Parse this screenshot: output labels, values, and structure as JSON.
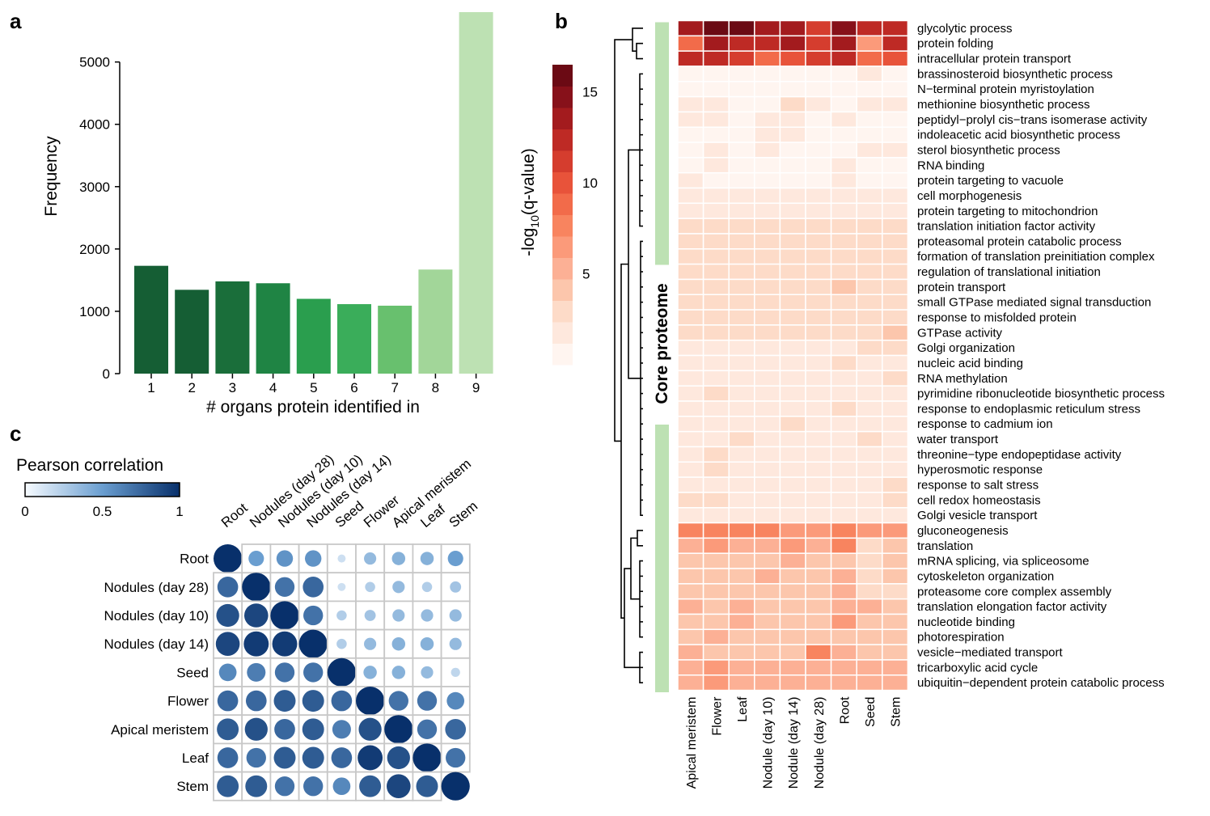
{
  "panels": [
    {
      "letter": "a"
    },
    {
      "letter": "b"
    },
    {
      "letter": "c"
    }
  ],
  "chart_data": [
    {
      "type": "bar",
      "panel": "a",
      "categories": [
        "1",
        "2",
        "3",
        "4",
        "5",
        "6",
        "7",
        "8",
        "9"
      ],
      "values": [
        1730,
        1345,
        1480,
        1450,
        1200,
        1115,
        1090,
        1670,
        5800
      ],
      "colors": [
        "#155e34",
        "#155e34",
        "#1a6e3a",
        "#1f8444",
        "#2a9e4e",
        "#3aad5a",
        "#68c06e",
        "#a2d699",
        "#bde1b3"
      ],
      "xlabel": "# organs protein identified in",
      "ylabel": "Frequency",
      "ylim": [
        0,
        5800
      ],
      "yticks": [
        0,
        1000,
        2000,
        3000,
        4000,
        5000
      ],
      "grid": false
    },
    {
      "type": "heatmap",
      "panel": "b",
      "colorbar": {
        "label_prefix": "-log",
        "label_sub": "10",
        "label_suffix": "(q-value)",
        "ticks": [
          5,
          10,
          15
        ],
        "min": 0,
        "max": 16.5,
        "colors": [
          "#fff5f0",
          "#fee8dd",
          "#fddbc8",
          "#fcc6ac",
          "#fcb095",
          "#fb9a7a",
          "#f8845f",
          "#f26b4a",
          "#e8533a",
          "#d53d2e",
          "#be2a25",
          "#a31b1e",
          "#87111a",
          "#6b0a14"
        ]
      },
      "columns": [
        "Apical meristem",
        "Flower",
        "Leaf",
        "Nodule (day 10)",
        "Nodule (day 14)",
        "Nodule (day 28)",
        "Root",
        "Seed",
        "Stem"
      ],
      "group_label": "Core proteome",
      "rows": [
        {
          "term": "glycolytic process",
          "values": [
            14,
            16,
            17,
            13,
            14,
            11,
            15,
            12,
            12
          ]
        },
        {
          "term": "protein folding",
          "values": [
            9,
            13,
            12,
            12,
            13,
            11,
            14,
            7,
            12
          ]
        },
        {
          "term": "intracellular protein transport",
          "values": [
            12,
            12,
            11,
            9,
            10,
            11,
            12,
            9,
            10
          ]
        },
        {
          "term": "brassinosteroid biosynthetic process",
          "values": [
            0.5,
            0.5,
            0.5,
            0.5,
            0.5,
            0.5,
            0.5,
            1.5,
            0.5
          ]
        },
        {
          "term": "N−terminal protein myristoylation",
          "values": [
            1,
            1,
            1,
            1,
            1,
            1,
            1,
            1,
            1
          ]
        },
        {
          "term": "methionine biosynthetic process",
          "values": [
            2,
            1.5,
            1,
            1,
            2.5,
            1.5,
            1,
            1.5,
            2
          ]
        },
        {
          "term": "peptidyl−prolyl cis−trans isomerase activity",
          "values": [
            1.5,
            1.5,
            1,
            2,
            2,
            1,
            2,
            1,
            1
          ]
        },
        {
          "term": "indoleacetic acid biosynthetic process",
          "values": [
            1,
            1,
            1,
            1.5,
            2,
            1,
            1,
            1,
            1
          ]
        },
        {
          "term": "sterol biosynthetic process",
          "values": [
            1,
            1.5,
            1,
            2,
            1,
            1,
            1,
            2,
            1.5
          ]
        },
        {
          "term": "RNA binding",
          "values": [
            1,
            2,
            1,
            1,
            1,
            1,
            2,
            1,
            1
          ]
        },
        {
          "term": "protein targeting to vacuole",
          "values": [
            1.5,
            1,
            1,
            1,
            1,
            1,
            1.5,
            1,
            1
          ]
        },
        {
          "term": "cell morphogenesis",
          "values": [
            1.5,
            2,
            2,
            1.5,
            1.5,
            1.5,
            2,
            1.5,
            1.5
          ]
        },
        {
          "term": "protein targeting to mitochondrion",
          "values": [
            1.5,
            1.5,
            1.5,
            1.5,
            1.5,
            1.5,
            1.5,
            1.5,
            1.5
          ]
        },
        {
          "term": "translation initiation factor activity",
          "values": [
            2.5,
            2.5,
            2.5,
            2.5,
            2.5,
            2.5,
            2.5,
            2.5,
            2.5
          ]
        },
        {
          "term": "proteasomal protein catabolic process",
          "values": [
            3,
            3,
            3,
            3,
            3,
            3,
            3,
            3,
            3
          ]
        },
        {
          "term": "formation of translation preinitiation complex",
          "values": [
            2.5,
            2.5,
            2.5,
            2.5,
            2.5,
            2.5,
            2.5,
            2.5,
            2.5
          ]
        },
        {
          "term": "regulation of translational initiation",
          "values": [
            2.5,
            2.5,
            2.5,
            2.5,
            2.5,
            2.5,
            2.5,
            2.5,
            2.5
          ]
        },
        {
          "term": "protein transport",
          "values": [
            2.5,
            2.5,
            2.5,
            2.5,
            3,
            3,
            4,
            2.5,
            3
          ]
        },
        {
          "term": "small GTPase mediated signal transduction",
          "values": [
            3,
            3,
            3,
            3,
            3,
            3,
            3,
            3,
            3
          ]
        },
        {
          "term": "response to misfolded protein",
          "values": [
            2.5,
            2.5,
            2.5,
            2.5,
            2.5,
            2.5,
            2.5,
            2.5,
            2.5
          ]
        },
        {
          "term": "GTPase activity",
          "values": [
            3,
            3,
            3,
            3,
            3,
            3,
            2.5,
            3,
            4
          ]
        },
        {
          "term": "Golgi organization",
          "values": [
            2,
            2,
            2,
            2,
            2,
            2,
            2,
            3,
            2.5
          ]
        },
        {
          "term": "nucleic acid binding",
          "values": [
            2,
            2,
            2,
            2,
            2,
            2,
            3,
            2,
            2
          ]
        },
        {
          "term": "RNA methylation",
          "values": [
            1.5,
            1.5,
            1.5,
            1.5,
            1.5,
            1.5,
            1.5,
            1.5,
            3
          ]
        },
        {
          "term": "pyrimidine ribonucleotide biosynthetic process",
          "values": [
            1.5,
            2.5,
            1.5,
            1.5,
            1.5,
            1.5,
            1.5,
            1.5,
            1.5
          ]
        },
        {
          "term": "response to endoplasmic reticulum stress",
          "values": [
            2,
            2,
            2,
            2,
            2,
            2,
            3,
            2,
            2
          ]
        },
        {
          "term": "response to cadmium ion",
          "values": [
            2,
            2,
            2,
            2,
            3,
            2,
            2,
            2,
            2
          ]
        },
        {
          "term": "water transport",
          "values": [
            1.5,
            2,
            2.5,
            1.5,
            1.5,
            1.5,
            1.5,
            2.5,
            1.5
          ]
        },
        {
          "term": "threonine−type endopeptidase activity",
          "values": [
            1.5,
            2.5,
            1.5,
            1.5,
            1.5,
            1.5,
            1.5,
            1.5,
            1.5
          ]
        },
        {
          "term": "hyperosmotic response",
          "values": [
            1.5,
            2.5,
            1.5,
            1.5,
            1.5,
            1.5,
            1.5,
            1.5,
            1.5
          ]
        },
        {
          "term": "response to salt stress",
          "values": [
            1.5,
            2,
            1.5,
            1.5,
            1.5,
            1.5,
            1.5,
            1.5,
            2.5
          ]
        },
        {
          "term": "cell redox homeostasis",
          "values": [
            2.5,
            2.5,
            2,
            2,
            2,
            2,
            2,
            2,
            2.5
          ]
        },
        {
          "term": "Golgi vesicle transport",
          "values": [
            2,
            2,
            1.5,
            1.5,
            1.5,
            1.5,
            1.5,
            1.5,
            2
          ]
        },
        {
          "term": "gluconeogenesis",
          "values": [
            8,
            7.5,
            7.5,
            7.5,
            7,
            7,
            7.5,
            6,
            6.5
          ]
        },
        {
          "term": "translation",
          "values": [
            5,
            6,
            5,
            5,
            6,
            5,
            8,
            3,
            4
          ]
        },
        {
          "term": "mRNA splicing, via spliceosome",
          "values": [
            4,
            4,
            4,
            4,
            5,
            4,
            4,
            3,
            4
          ]
        },
        {
          "term": "cytoskeleton organization",
          "values": [
            4,
            4,
            4,
            5,
            4,
            4,
            5,
            3,
            4
          ]
        },
        {
          "term": "proteasome core complex assembly",
          "values": [
            4,
            4,
            4,
            4,
            4,
            4,
            5,
            3,
            3.5
          ]
        },
        {
          "term": "translation elongation factor activity",
          "values": [
            5,
            4,
            5,
            4,
            4,
            4,
            5,
            5,
            4.5
          ]
        },
        {
          "term": "nucleotide binding",
          "values": [
            4,
            4,
            5,
            4,
            4,
            4,
            6,
            4,
            4
          ]
        },
        {
          "term": "photorespiration",
          "values": [
            4,
            5,
            4,
            4,
            4,
            4,
            4,
            4,
            4
          ]
        },
        {
          "term": "vesicle−mediated transport",
          "values": [
            5.5,
            4.5,
            4.5,
            4.5,
            4.5,
            7.5,
            5,
            4.5,
            4.5
          ]
        },
        {
          "term": "tricarboxylic acid cycle",
          "values": [
            5,
            6,
            5,
            5,
            5,
            5,
            5,
            5,
            5
          ]
        },
        {
          "term": "ubiquitin−dependent protein catabolic process",
          "values": [
            5,
            6,
            5,
            5,
            5,
            5,
            5,
            5,
            5
          ]
        }
      ]
    },
    {
      "type": "heatmap",
      "panel": "c",
      "title": "Pearson correlation",
      "colorbar": {
        "ticks": [
          0,
          0.5,
          1
        ],
        "min": 0,
        "max": 1,
        "colors": [
          "#f7fbff",
          "#6a9ed0",
          "#08306b"
        ]
      },
      "top_labels": [
        "Root",
        "Nodules (day 28)",
        "Nodules (day 10)",
        "Nodules (day 14)",
        "Seed",
        "Flower",
        "Apical meristem",
        "Leaf",
        "Stem"
      ],
      "row_labels": [
        "Root",
        "Nodules (day 28)",
        "Nodules (day 10)",
        "Nodules (day 14)",
        "Seed",
        "Flower",
        "Apical meristem",
        "Leaf",
        "Stem"
      ],
      "matrix": [
        [
          1.0,
          0.5,
          0.55,
          0.55,
          0.15,
          0.35,
          0.4,
          0.4,
          0.5
        ],
        [
          0.75,
          1.0,
          0.7,
          0.75,
          0.15,
          0.25,
          0.35,
          0.25,
          0.3
        ],
        [
          0.85,
          0.9,
          1.0,
          0.7,
          0.25,
          0.3,
          0.35,
          0.35,
          0.35
        ],
        [
          0.9,
          0.95,
          0.95,
          1.0,
          0.25,
          0.35,
          0.4,
          0.4,
          0.35
        ],
        [
          0.6,
          0.65,
          0.7,
          0.7,
          1.0,
          0.4,
          0.4,
          0.35,
          0.2
        ],
        [
          0.75,
          0.75,
          0.8,
          0.8,
          0.75,
          1.0,
          0.7,
          0.7,
          0.6
        ],
        [
          0.8,
          0.85,
          0.75,
          0.8,
          0.65,
          0.85,
          1.0,
          0.7,
          0.75
        ],
        [
          0.75,
          0.7,
          0.8,
          0.8,
          0.75,
          0.95,
          0.85,
          1.0,
          0.7
        ],
        [
          0.8,
          0.8,
          0.7,
          0.7,
          0.6,
          0.8,
          0.9,
          0.8,
          1.0
        ]
      ]
    }
  ]
}
